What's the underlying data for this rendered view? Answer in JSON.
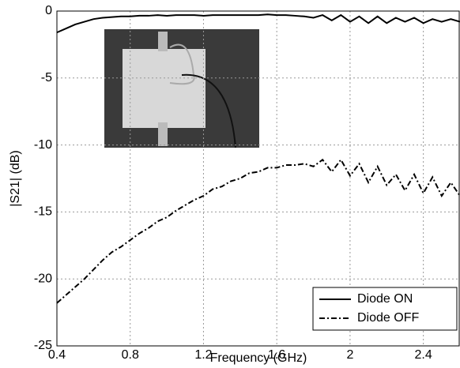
{
  "chart_data": {
    "type": "line",
    "x_label": "Frequency (GHz)",
    "y_label": "|S21| (dB)",
    "x": [
      0.4,
      0.45,
      0.5,
      0.55,
      0.6,
      0.65,
      0.7,
      0.75,
      0.8,
      0.85,
      0.9,
      0.95,
      1.0,
      1.05,
      1.1,
      1.15,
      1.2,
      1.25,
      1.3,
      1.35,
      1.4,
      1.45,
      1.5,
      1.55,
      1.6,
      1.65,
      1.7,
      1.75,
      1.8,
      1.85,
      1.9,
      1.95,
      2.0,
      2.05,
      2.1,
      2.15,
      2.2,
      2.25,
      2.3,
      2.35,
      2.4,
      2.45,
      2.5,
      2.55,
      2.6
    ],
    "series": [
      {
        "name": "Diode ON",
        "color": "#000000",
        "dash": "solid",
        "values": [
          -1.6,
          -1.3,
          -1.0,
          -0.8,
          -0.6,
          -0.5,
          -0.45,
          -0.4,
          -0.4,
          -0.35,
          -0.35,
          -0.3,
          -0.35,
          -0.3,
          -0.3,
          -0.3,
          -0.35,
          -0.3,
          -0.3,
          -0.3,
          -0.3,
          -0.3,
          -0.3,
          -0.25,
          -0.3,
          -0.3,
          -0.35,
          -0.4,
          -0.5,
          -0.3,
          -0.7,
          -0.3,
          -0.8,
          -0.4,
          -0.9,
          -0.4,
          -0.9,
          -0.5,
          -0.8,
          -0.5,
          -0.9,
          -0.6,
          -0.8,
          -0.6,
          -0.8
        ]
      },
      {
        "name": "Diode OFF",
        "color": "#000000",
        "dash": "dashdot",
        "values": [
          -21.8,
          -21.2,
          -20.6,
          -20.0,
          -19.3,
          -18.6,
          -18.0,
          -17.6,
          -17.1,
          -16.6,
          -16.2,
          -15.7,
          -15.4,
          -14.9,
          -14.5,
          -14.1,
          -13.8,
          -13.3,
          -13.1,
          -12.7,
          -12.5,
          -12.1,
          -12.0,
          -11.7,
          -11.7,
          -11.5,
          -11.5,
          -11.4,
          -11.6,
          -11.1,
          -12.0,
          -11.1,
          -12.3,
          -11.4,
          -12.8,
          -11.6,
          -13.0,
          -12.2,
          -13.4,
          -12.2,
          -13.6,
          -12.4,
          -13.8,
          -12.8,
          -13.8
        ]
      }
    ],
    "xlim": [
      0.4,
      2.6
    ],
    "xticks": [
      0.4,
      0.8,
      1.2,
      1.6,
      2,
      2.4
    ],
    "ylim": [
      -25,
      0
    ],
    "yticks": [
      0,
      -5,
      -10,
      -15,
      -20,
      -25
    ],
    "grid": true,
    "legend": "lower right"
  }
}
